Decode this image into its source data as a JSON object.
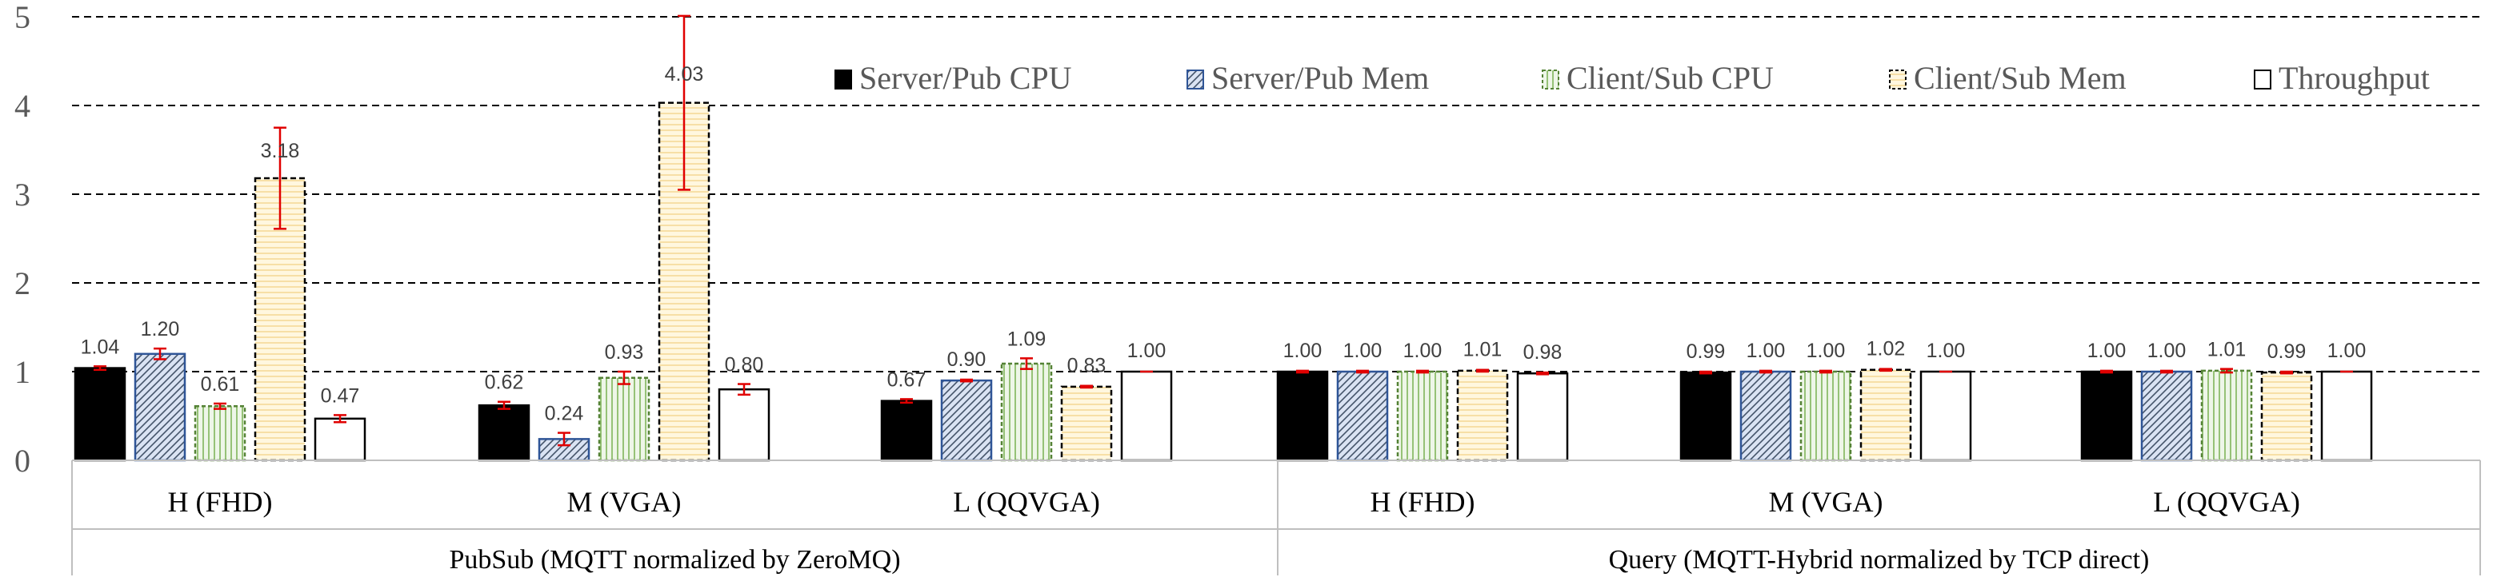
{
  "chart_data": {
    "type": "bar",
    "ylim": [
      0,
      5
    ],
    "yticks": [
      "0",
      "1",
      "2",
      "3",
      "4",
      "5"
    ],
    "grid": "horizontal dashed",
    "legend_position": "top-right",
    "groups": [
      {
        "label": "PubSub (MQTT normalized by ZeroMQ)",
        "categories": [
          "H (FHD)",
          "M (VGA)",
          "L (QQVGA)"
        ]
      },
      {
        "label": "Query (MQTT-Hybrid normalized by TCP direct)",
        "categories": [
          "H (FHD)",
          "M (VGA)",
          "L (QQVGA)"
        ]
      }
    ],
    "series": [
      {
        "name": "Server/Pub CPU",
        "values": [
          1.04,
          0.62,
          0.67,
          1.0,
          0.99,
          1.0
        ],
        "labels": [
          "1.04",
          "0.62",
          "0.67",
          "1.00",
          "0.99",
          "1.00"
        ],
        "err": [
          0.02,
          0.04,
          0.02,
          0.01,
          0.01,
          0.01
        ]
      },
      {
        "name": "Server/Pub Mem",
        "values": [
          1.2,
          0.24,
          0.9,
          1.0,
          1.0,
          1.0
        ],
        "labels": [
          "1.20",
          "0.24",
          "0.90",
          "1.00",
          "1.00",
          "1.00"
        ],
        "err": [
          0.06,
          0.07,
          0.01,
          0.01,
          0.01,
          0.01
        ]
      },
      {
        "name": "Client/Sub CPU",
        "values": [
          0.61,
          0.93,
          1.09,
          1.0,
          1.0,
          1.01
        ],
        "labels": [
          "0.61",
          "0.93",
          "1.09",
          "1.00",
          "1.00",
          "1.01"
        ],
        "err": [
          0.03,
          0.07,
          0.06,
          0.01,
          0.01,
          0.02
        ]
      },
      {
        "name": "Client/Sub Mem",
        "values": [
          3.18,
          4.03,
          0.83,
          1.01,
          1.02,
          0.99
        ],
        "labels": [
          "3.18",
          "4.03",
          "0.83",
          "1.01",
          "1.02",
          "0.99"
        ],
        "err": [
          0.57,
          0.98,
          0.01,
          0.01,
          0.01,
          0.01
        ]
      },
      {
        "name": "Throughput",
        "values": [
          0.47,
          0.8,
          1.0,
          0.98,
          1.0,
          1.0
        ],
        "labels": [
          "0.47",
          "0.80",
          "1.00",
          "0.98",
          "1.00",
          "1.00"
        ],
        "err": [
          0.04,
          0.06,
          0.0,
          0.01,
          0.0,
          0.0
        ]
      }
    ]
  },
  "colors": {
    "server_pub_cpu": "#000000",
    "server_pub_mem": "#dae3f3",
    "client_sub_cpu": "#e2f0d9",
    "client_sub_mem": "#fff2cc",
    "throughput": "#ffffff",
    "error_bar": "#e00000",
    "gridline": "#000000",
    "axis": "#bfbfbf"
  }
}
